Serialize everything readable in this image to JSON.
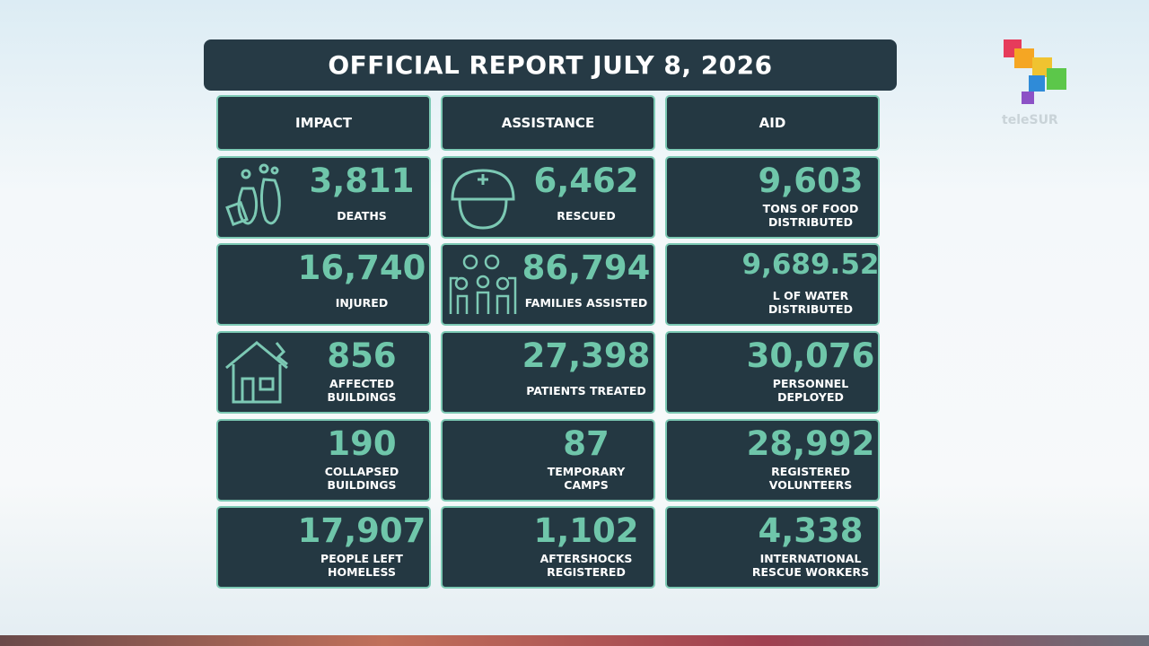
{
  "header": {
    "title": "OFFICIAL REPORT JULY 8, 2026"
  },
  "logo": {
    "text": "teleSUR"
  },
  "columns": [
    {
      "header": "IMPACT",
      "cells": [
        {
          "value": "3,811",
          "label": [
            "DEATHS"
          ]
        },
        {
          "value": "16,740",
          "label": [
            "INJURED"
          ]
        },
        {
          "value": "856",
          "label": [
            "AFFECTED",
            "BUILDINGS"
          ]
        },
        {
          "value": "190",
          "label": [
            "COLLAPSED",
            "BUILDINGS"
          ]
        },
        {
          "value": "17,907",
          "label": [
            "PEOPLE LEFT",
            "HOMELESS"
          ]
        }
      ]
    },
    {
      "header": "ASSISTANCE",
      "cells": [
        {
          "value": "6,462",
          "label": [
            "RESCUED"
          ]
        },
        {
          "value": "86,794",
          "label": [
            "FAMILIES ASSISTED"
          ]
        },
        {
          "value": "27,398",
          "label": [
            "PATIENTS TREATED"
          ]
        },
        {
          "value": "87",
          "label": [
            "TEMPORARY",
            "CAMPS"
          ]
        },
        {
          "value": "1,102",
          "label": [
            "AFTERSHOCKS",
            "REGISTERED"
          ]
        }
      ]
    },
    {
      "header": "AID",
      "cells": [
        {
          "value": "9,603",
          "label": [
            "TONS OF FOOD",
            "DISTRIBUTED"
          ]
        },
        {
          "value": "9,689.52",
          "label": [
            "L OF WATER",
            "DISTRIBUTED"
          ]
        },
        {
          "value": "30,076",
          "label": [
            "PERSONNEL",
            "DEPLOYED"
          ]
        },
        {
          "value": "28,992",
          "label": [
            "REGISTERED",
            "VOLUNTEERS"
          ]
        },
        {
          "value": "4,338",
          "label": [
            "INTERNATIONAL",
            "RESCUE WORKERS"
          ]
        }
      ]
    }
  ]
}
